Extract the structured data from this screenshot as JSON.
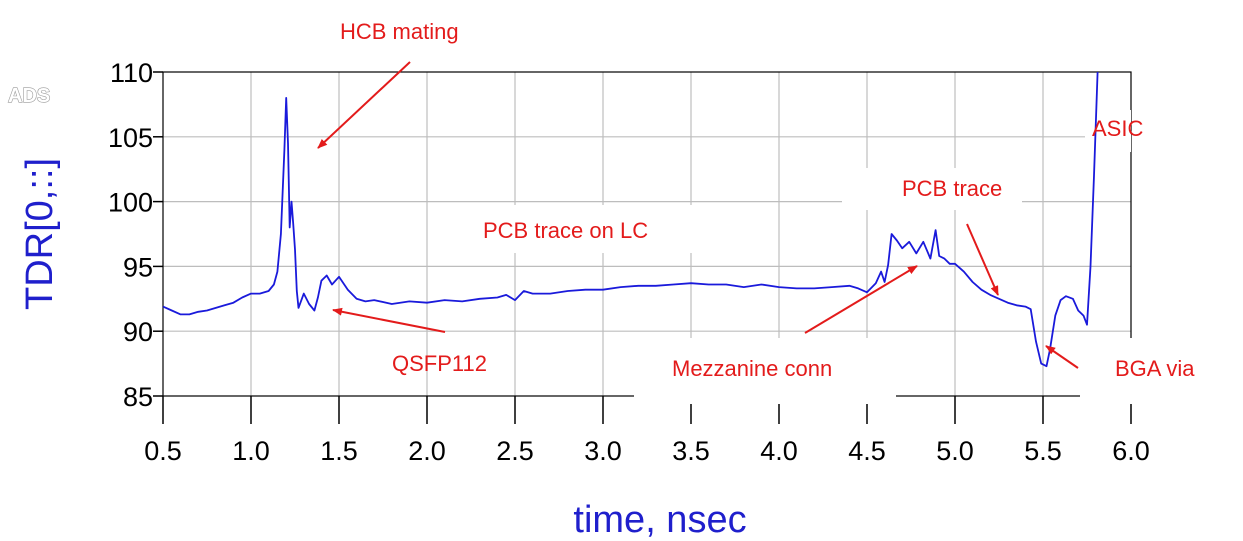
{
  "brand": "ADS",
  "chart_data": {
    "type": "line",
    "xlabel": "time, nsec",
    "ylabel": "TDR[0,::]",
    "xlim": [
      0.5,
      6.0
    ],
    "ylim": [
      85,
      110
    ],
    "x_ticks": [
      "0.5",
      "1.0",
      "1.5",
      "2.0",
      "2.5",
      "3.0",
      "3.5",
      "4.0",
      "4.5",
      "5.0",
      "5.5",
      "6.0"
    ],
    "y_ticks": [
      "85",
      "90",
      "95",
      "100",
      "105",
      "110"
    ],
    "grid": true,
    "series": [
      {
        "color": "#1a1adb",
        "points": [
          [
            0.5,
            91.9
          ],
          [
            0.55,
            91.6
          ],
          [
            0.6,
            91.3
          ],
          [
            0.65,
            91.3
          ],
          [
            0.7,
            91.5
          ],
          [
            0.75,
            91.6
          ],
          [
            0.8,
            91.8
          ],
          [
            0.85,
            92.0
          ],
          [
            0.9,
            92.2
          ],
          [
            0.95,
            92.6
          ],
          [
            1.0,
            92.9
          ],
          [
            1.05,
            92.9
          ],
          [
            1.1,
            93.1
          ],
          [
            1.13,
            93.6
          ],
          [
            1.15,
            94.6
          ],
          [
            1.17,
            97.5
          ],
          [
            1.19,
            104.0
          ],
          [
            1.2,
            108.0
          ],
          [
            1.21,
            104.5
          ],
          [
            1.22,
            98.0
          ],
          [
            1.23,
            100.0
          ],
          [
            1.24,
            98.3
          ],
          [
            1.25,
            96.3
          ],
          [
            1.26,
            93.1
          ],
          [
            1.27,
            91.8
          ],
          [
            1.3,
            92.9
          ],
          [
            1.33,
            92.1
          ],
          [
            1.36,
            91.6
          ],
          [
            1.38,
            92.6
          ],
          [
            1.4,
            93.9
          ],
          [
            1.43,
            94.3
          ],
          [
            1.46,
            93.6
          ],
          [
            1.5,
            94.2
          ],
          [
            1.55,
            93.2
          ],
          [
            1.6,
            92.5
          ],
          [
            1.65,
            92.3
          ],
          [
            1.7,
            92.4
          ],
          [
            1.8,
            92.1
          ],
          [
            1.9,
            92.3
          ],
          [
            2.0,
            92.2
          ],
          [
            2.1,
            92.4
          ],
          [
            2.2,
            92.3
          ],
          [
            2.3,
            92.5
          ],
          [
            2.4,
            92.6
          ],
          [
            2.45,
            92.8
          ],
          [
            2.5,
            92.4
          ],
          [
            2.55,
            93.1
          ],
          [
            2.6,
            92.9
          ],
          [
            2.7,
            92.9
          ],
          [
            2.8,
            93.1
          ],
          [
            2.9,
            93.2
          ],
          [
            3.0,
            93.2
          ],
          [
            3.1,
            93.4
          ],
          [
            3.2,
            93.5
          ],
          [
            3.3,
            93.5
          ],
          [
            3.4,
            93.6
          ],
          [
            3.5,
            93.7
          ],
          [
            3.6,
            93.6
          ],
          [
            3.7,
            93.6
          ],
          [
            3.8,
            93.4
          ],
          [
            3.9,
            93.6
          ],
          [
            4.0,
            93.4
          ],
          [
            4.1,
            93.3
          ],
          [
            4.2,
            93.3
          ],
          [
            4.3,
            93.4
          ],
          [
            4.4,
            93.5
          ],
          [
            4.45,
            93.3
          ],
          [
            4.5,
            93.0
          ],
          [
            4.55,
            93.7
          ],
          [
            4.58,
            94.6
          ],
          [
            4.6,
            93.8
          ],
          [
            4.62,
            95.1
          ],
          [
            4.64,
            97.5
          ],
          [
            4.67,
            97.0
          ],
          [
            4.7,
            96.4
          ],
          [
            4.74,
            96.9
          ],
          [
            4.78,
            96.0
          ],
          [
            4.82,
            96.9
          ],
          [
            4.86,
            95.6
          ],
          [
            4.89,
            97.8
          ],
          [
            4.91,
            95.8
          ],
          [
            4.94,
            95.6
          ],
          [
            4.97,
            95.2
          ],
          [
            5.0,
            95.2
          ],
          [
            5.05,
            94.6
          ],
          [
            5.1,
            93.8
          ],
          [
            5.15,
            93.2
          ],
          [
            5.2,
            92.8
          ],
          [
            5.25,
            92.5
          ],
          [
            5.3,
            92.2
          ],
          [
            5.35,
            92.0
          ],
          [
            5.4,
            91.9
          ],
          [
            5.43,
            91.7
          ],
          [
            5.46,
            89.2
          ],
          [
            5.49,
            87.5
          ],
          [
            5.52,
            87.3
          ],
          [
            5.54,
            88.6
          ],
          [
            5.57,
            91.2
          ],
          [
            5.6,
            92.4
          ],
          [
            5.63,
            92.7
          ],
          [
            5.67,
            92.5
          ],
          [
            5.7,
            91.6
          ],
          [
            5.73,
            91.2
          ],
          [
            5.75,
            90.5
          ],
          [
            5.77,
            95.0
          ],
          [
            5.79,
            102.0
          ],
          [
            5.81,
            110.0
          ]
        ]
      }
    ],
    "annotations": [
      {
        "text": "HCB mating",
        "x": 1.22,
        "y": 104.2
      },
      {
        "text": "QSFP112",
        "x": 1.32,
        "y": 92.0
      },
      {
        "text": "PCB trace on LC",
        "x": null,
        "y": null
      },
      {
        "text": "Mezzanine conn",
        "x": 4.77,
        "y": 95.1
      },
      {
        "text": "PCB trace",
        "x": 5.22,
        "y": 92.7
      },
      {
        "text": "BGA via",
        "x": 5.53,
        "y": 88.4
      },
      {
        "text": "ASIC",
        "x": null,
        "y": null
      }
    ]
  }
}
